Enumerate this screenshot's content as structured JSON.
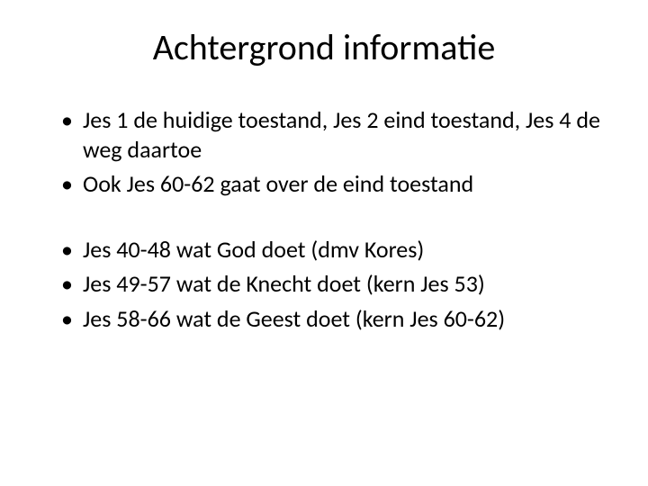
{
  "title": "Achtergrond informatie",
  "title_fontsize": 40,
  "body_fontsize": 26,
  "text_color": "#000000",
  "background_color": "#ffffff",
  "bullet_char": "•",
  "group1": [
    "Jes 1 de huidige toestand, Jes 2 eind toestand, Jes 4 de weg daartoe",
    "Ook Jes 60-62 gaat over de eind toestand"
  ],
  "group2": [
    "Jes 40-48 wat God doet (dmv Kores)",
    "Jes 49-57 wat de Knecht doet (kern Jes 53)",
    "Jes 58-66 wat de Geest doet (kern Jes 60-62)"
  ]
}
